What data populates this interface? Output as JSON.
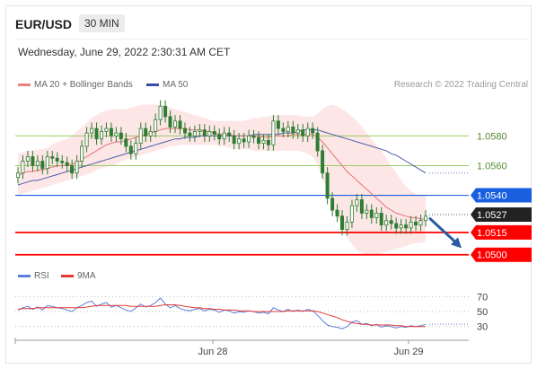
{
  "header": {
    "symbol": "EUR/USD",
    "timeframe": "30 MIN",
    "datetime": "Wednesday, June 29, 2022 2:30:31 AM CET"
  },
  "legend": {
    "ma_bb_label": "MA 20 + Bollinger Bands",
    "ma50_label": "MA 50",
    "credit": "Research © 2022 Trading Central",
    "rsi_label": "RSI",
    "rsi_ma_label": "9MA"
  },
  "colors": {
    "candle": "#2e7d32",
    "ma20": "#e57373",
    "ma50": "#4a5fa8",
    "bands_fill": "#fde0e0",
    "resistance": "#1a5fe0",
    "support": "#ff0000",
    "green_level": "#9ccc65",
    "last_price_bg": "#222222",
    "rsi": "#5b7fdb",
    "rsi_ma": "#e53935",
    "arrow": "#2a5aa0"
  },
  "chart_data": [
    {
      "type": "candlestick",
      "title": "EUR/USD 30 MIN",
      "x_labels": [
        "Jun 28",
        "Jun 29"
      ],
      "ylim": [
        1.0495,
        1.0605
      ],
      "y_axis_side": "right",
      "levels": [
        {
          "value": 1.058,
          "label": "1.0580",
          "kind": "reference"
        },
        {
          "value": 1.056,
          "label": "1.0560",
          "kind": "reference"
        },
        {
          "value": 1.054,
          "label": "1.0540",
          "kind": "resistance"
        },
        {
          "value": 1.0527,
          "label": "1.0527",
          "kind": "last"
        },
        {
          "value": 1.0515,
          "label": "1.0515",
          "kind": "support"
        },
        {
          "value": 1.05,
          "label": "1.0500",
          "kind": "support"
        }
      ],
      "forecast_direction": "down",
      "close": [
        1.0555,
        1.0563,
        1.0566,
        1.056,
        1.0563,
        1.0558,
        1.0566,
        1.0565,
        1.0563,
        1.0562,
        1.056,
        1.0555,
        1.0563,
        1.0573,
        1.0582,
        1.0585,
        1.0578,
        1.0583,
        1.0585,
        1.058,
        1.0582,
        1.0578,
        1.0573,
        1.0568,
        1.0575,
        1.0585,
        1.058,
        1.0583,
        1.0591,
        1.06,
        1.0593,
        1.0586,
        1.059,
        1.0585,
        1.0582,
        1.058,
        1.0583,
        1.0584,
        1.058,
        1.0583,
        1.0581,
        1.0578,
        1.0582,
        1.058,
        1.0575,
        1.0578,
        1.0576,
        1.058,
        1.0579,
        1.0575,
        1.0577,
        1.0574,
        1.059,
        1.0585,
        1.0583,
        1.0586,
        1.0582,
        1.0584,
        1.058,
        1.0585,
        1.0582,
        1.057,
        1.0555,
        1.0538,
        1.053,
        1.0526,
        1.0517,
        1.0522,
        1.0533,
        1.0537,
        1.0528,
        1.053,
        1.0525,
        1.0528,
        1.052,
        1.0523,
        1.0521,
        1.0518,
        1.052,
        1.0518,
        1.0522,
        1.052,
        1.0523,
        1.0526
      ],
      "ma20": [
        1.0553,
        1.0555,
        1.0556,
        1.0556,
        1.0557,
        1.0557,
        1.0558,
        1.0559,
        1.056,
        1.056,
        1.056,
        1.0561,
        1.0562,
        1.0564,
        1.0566,
        1.0568,
        1.057,
        1.0572,
        1.0574,
        1.0575,
        1.0576,
        1.0576,
        1.0577,
        1.0578,
        1.0579,
        1.058,
        1.0581,
        1.0582,
        1.0583,
        1.0584,
        1.0585,
        1.0585,
        1.0585,
        1.0585,
        1.0585,
        1.0584,
        1.0584,
        1.0584,
        1.0583,
        1.0583,
        1.0582,
        1.0581,
        1.0581,
        1.0581,
        1.058,
        1.058,
        1.058,
        1.058,
        1.058,
        1.058,
        1.0579,
        1.0579,
        1.058,
        1.058,
        1.058,
        1.058,
        1.0581,
        1.0581,
        1.0581,
        1.0581,
        1.0581,
        1.0579,
        1.0576,
        1.0572,
        1.0568,
        1.0564,
        1.056,
        1.0556,
        1.0553,
        1.055,
        1.0547,
        1.0544,
        1.0541,
        1.0538,
        1.0535,
        1.0532,
        1.053,
        1.0528,
        1.0527,
        1.0526,
        1.0525,
        1.0525,
        1.0524,
        1.0524
      ],
      "band_upper": [
        1.0568,
        1.0569,
        1.057,
        1.057,
        1.0571,
        1.0571,
        1.0572,
        1.0574,
        1.0576,
        1.0577,
        1.0578,
        1.058,
        1.0583,
        1.0586,
        1.0589,
        1.0592,
        1.0594,
        1.0596,
        1.0597,
        1.0598,
        1.0598,
        1.0598,
        1.0598,
        1.0599,
        1.06,
        1.0601,
        1.0601,
        1.0601,
        1.0601,
        1.0601,
        1.06,
        1.0599,
        1.0598,
        1.0597,
        1.0596,
        1.0595,
        1.0594,
        1.0593,
        1.0592,
        1.0591,
        1.059,
        1.059,
        1.059,
        1.059,
        1.059,
        1.059,
        1.059,
        1.0591,
        1.0592,
        1.0592,
        1.0593,
        1.0593,
        1.0594,
        1.0594,
        1.0594,
        1.0594,
        1.0594,
        1.0594,
        1.0593,
        1.0593,
        1.0593,
        1.0595,
        1.0598,
        1.06,
        1.0601,
        1.06,
        1.0598,
        1.0596,
        1.0593,
        1.059,
        1.0586,
        1.0582,
        1.0578,
        1.0574,
        1.057,
        1.0565,
        1.056,
        1.0555,
        1.055,
        1.0546,
        1.0543,
        1.0541,
        1.054,
        1.054
      ],
      "band_lower": [
        1.054,
        1.0541,
        1.0542,
        1.0543,
        1.0544,
        1.0545,
        1.0546,
        1.0547,
        1.0548,
        1.0549,
        1.055,
        1.0551,
        1.0552,
        1.0553,
        1.0554,
        1.0555,
        1.0557,
        1.0558,
        1.0559,
        1.056,
        1.0561,
        1.0563,
        1.0564,
        1.0565,
        1.0566,
        1.0567,
        1.0568,
        1.0569,
        1.057,
        1.0571,
        1.0572,
        1.0573,
        1.0573,
        1.0574,
        1.0574,
        1.0574,
        1.0574,
        1.0574,
        1.0574,
        1.0574,
        1.0574,
        1.0573,
        1.0573,
        1.0572,
        1.0571,
        1.0571,
        1.0571,
        1.0571,
        1.057,
        1.057,
        1.057,
        1.057,
        1.057,
        1.057,
        1.057,
        1.057,
        1.057,
        1.057,
        1.0569,
        1.0568,
        1.0566,
        1.056,
        1.0552,
        1.0543,
        1.0534,
        1.0526,
        1.0518,
        1.0512,
        1.0507,
        1.0503,
        1.0501,
        1.05,
        1.05,
        1.05,
        1.0501,
        1.0502,
        1.0503,
        1.0504,
        1.0505,
        1.0506,
        1.0507,
        1.0508,
        1.0508,
        1.0509
      ],
      "ma50": [
        1.0547,
        1.0548,
        1.0549,
        1.055,
        1.055,
        1.0551,
        1.0552,
        1.0553,
        1.0554,
        1.0555,
        1.0556,
        1.0557,
        1.0558,
        1.0559,
        1.056,
        1.0561,
        1.0562,
        1.0563,
        1.0564,
        1.0565,
        1.0566,
        1.0567,
        1.0568,
        1.0569,
        1.057,
        1.0571,
        1.0572,
        1.0573,
        1.0574,
        1.0575,
        1.0576,
        1.0577,
        1.0578,
        1.0578,
        1.0579,
        1.0579,
        1.0579,
        1.058,
        1.058,
        1.058,
        1.058,
        1.058,
        1.058,
        1.058,
        1.058,
        1.058,
        1.058,
        1.058,
        1.0581,
        1.0581,
        1.0581,
        1.0581,
        1.0581,
        1.0581,
        1.0582,
        1.0582,
        1.0582,
        1.0583,
        1.0584,
        1.0584,
        1.0584,
        1.0584,
        1.0583,
        1.0582,
        1.0581,
        1.058,
        1.0579,
        1.0578,
        1.0577,
        1.0576,
        1.0575,
        1.0574,
        1.0573,
        1.0572,
        1.0571,
        1.057,
        1.0568,
        1.0567,
        1.0565,
        1.0563,
        1.0561,
        1.0559,
        1.0557,
        1.0555
      ]
    },
    {
      "type": "line",
      "title": "RSI",
      "ylim": [
        20,
        80
      ],
      "ticks": [
        70,
        50,
        30
      ],
      "series": [
        {
          "name": "RSI",
          "values": [
            52,
            55,
            57,
            53,
            56,
            52,
            58,
            57,
            55,
            54,
            52,
            50,
            55,
            58,
            62,
            64,
            57,
            60,
            62,
            56,
            58,
            55,
            52,
            50,
            55,
            60,
            56,
            58,
            62,
            68,
            60,
            55,
            58,
            54,
            52,
            51,
            53,
            54,
            51,
            53,
            52,
            49,
            52,
            51,
            48,
            50,
            49,
            51,
            50,
            48,
            49,
            47,
            55,
            52,
            50,
            53,
            50,
            52,
            50,
            53,
            51,
            45,
            38,
            32,
            30,
            29,
            27,
            30,
            36,
            38,
            33,
            34,
            31,
            33,
            29,
            31,
            30,
            28,
            30,
            29,
            31,
            30,
            31,
            33
          ]
        },
        {
          "name": "9MA",
          "values": [
            53,
            54,
            54,
            54,
            55,
            55,
            55,
            55,
            55,
            55,
            55,
            55,
            55,
            55,
            56,
            57,
            58,
            58,
            58,
            58,
            58,
            58,
            58,
            57,
            57,
            57,
            57,
            57,
            57,
            58,
            59,
            59,
            59,
            58,
            57,
            56,
            55,
            55,
            54,
            54,
            53,
            53,
            52,
            52,
            52,
            51,
            51,
            51,
            50,
            50,
            50,
            50,
            50,
            50,
            50,
            51,
            51,
            51,
            51,
            51,
            51,
            50,
            48,
            46,
            44,
            42,
            39,
            37,
            35,
            34,
            33,
            33,
            32,
            32,
            32,
            32,
            32,
            31,
            31,
            30,
            30,
            30,
            30,
            30
          ]
        }
      ]
    }
  ]
}
